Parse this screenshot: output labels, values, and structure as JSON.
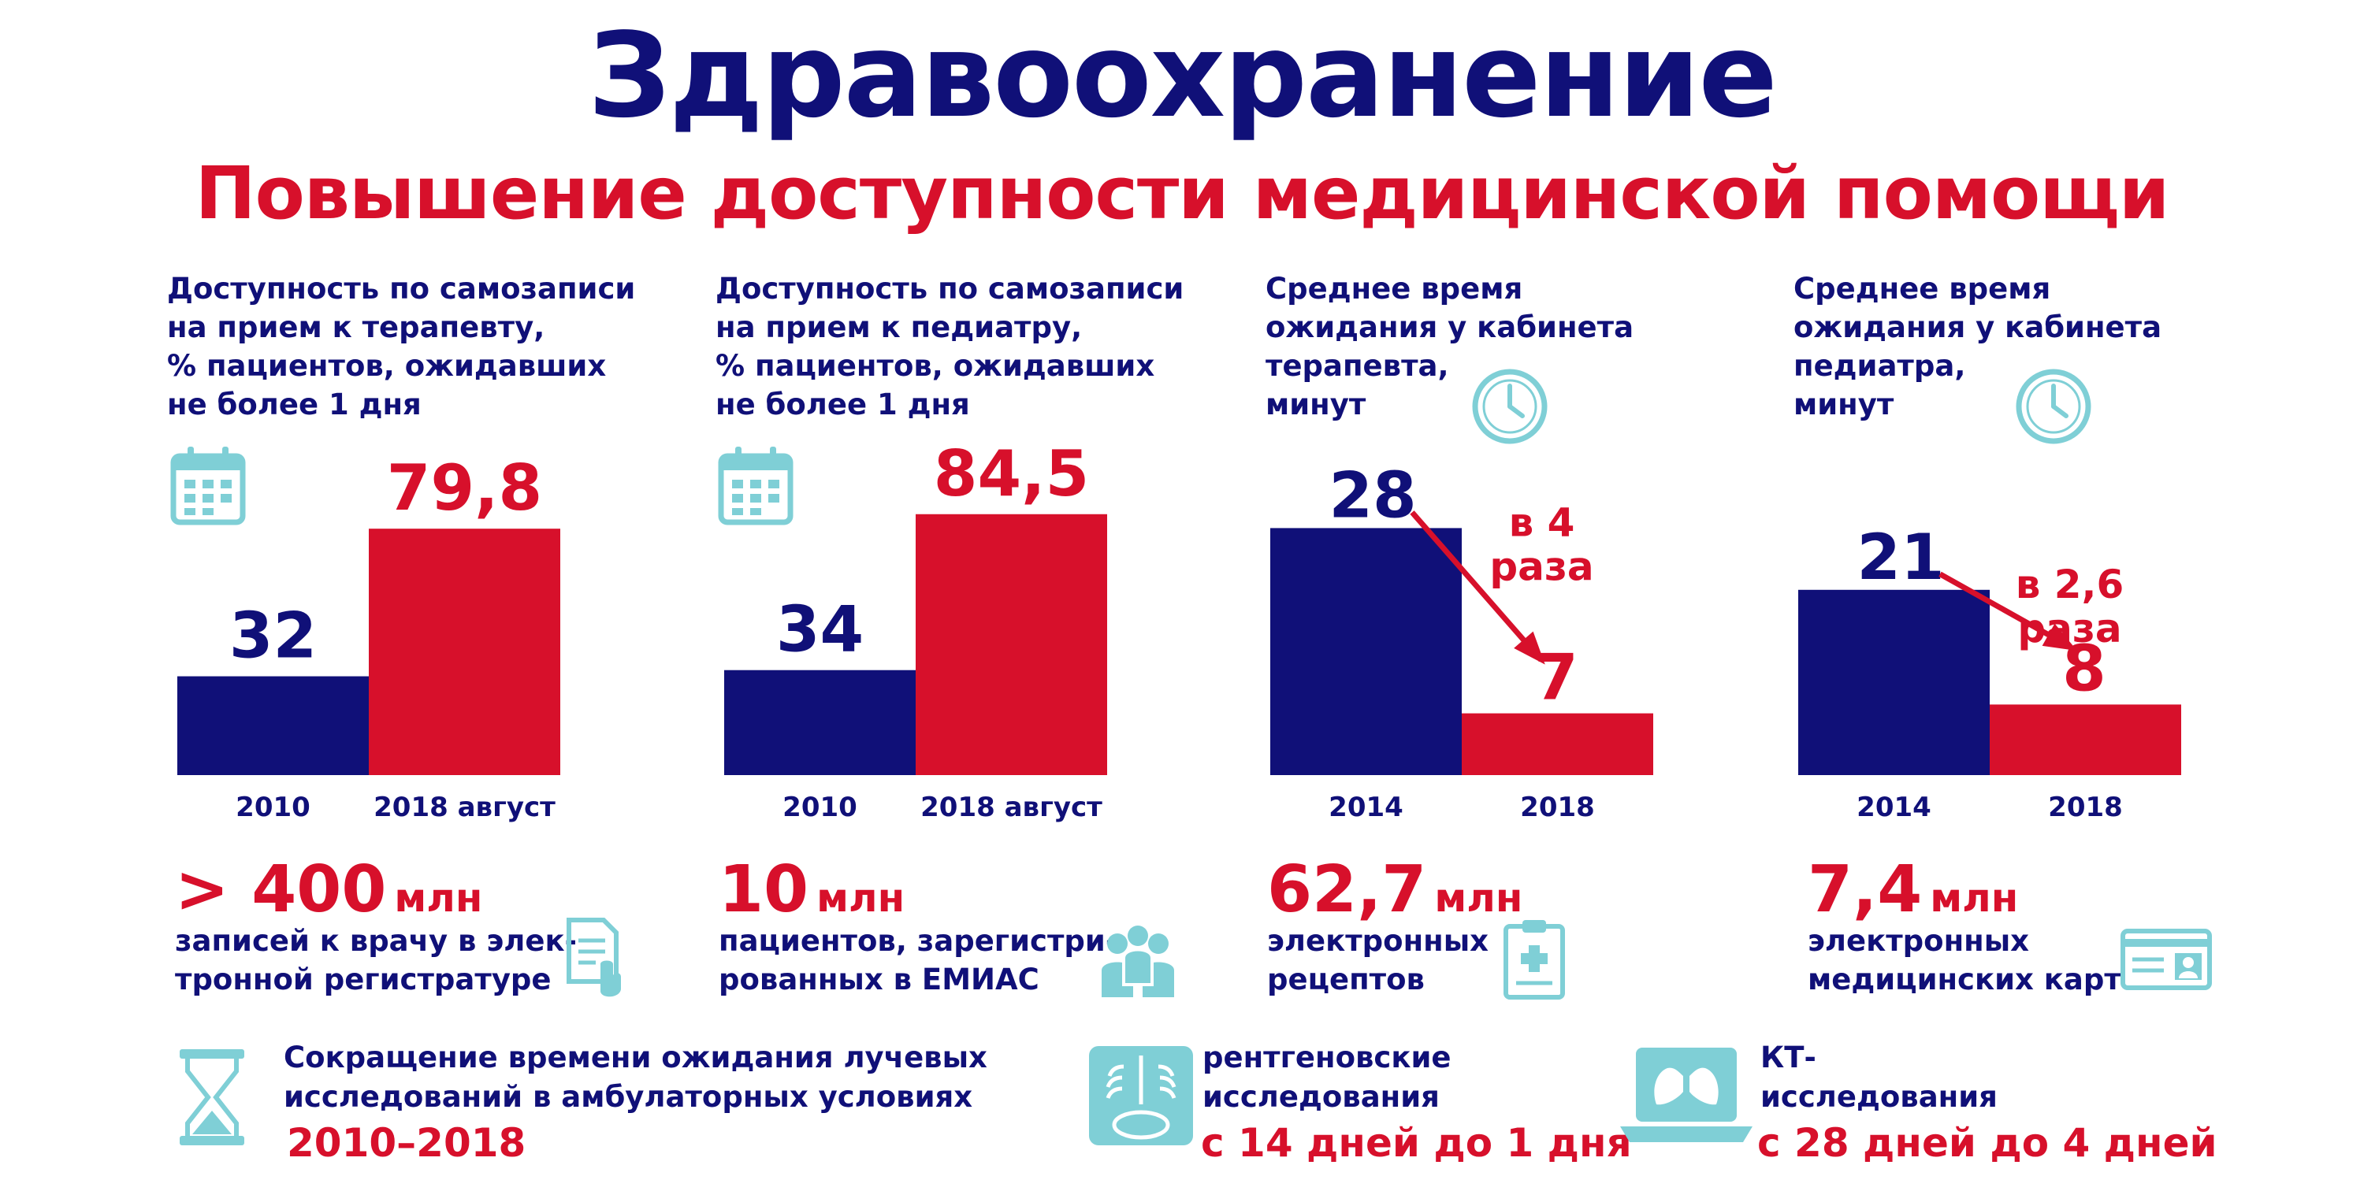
{
  "header": {
    "title": "Здравоохранение",
    "subtitle": "Повышение доступности медицинской помощи"
  },
  "colors": {
    "navy": "#101078",
    "red": "#d7102b",
    "teal": "#7fcfd6"
  },
  "panels": [
    {
      "title_lines": [
        "Доступность по самозаписи",
        "на прием к терапевту,",
        "% пациентов, ожидавших",
        "не более 1 дня"
      ],
      "icon": "calendar-icon",
      "stat": {
        "number": "> 400",
        "unit": "млн",
        "lines": [
          "записей к врачу в элек-",
          "тронной регистратуре"
        ],
        "icon": "touch-document-icon"
      }
    },
    {
      "title_lines": [
        "Доступность по самозаписи",
        "на прием к педиатру,",
        "% пациентов, ожидавших",
        "не более 1 дня"
      ],
      "icon": "calendar-icon",
      "stat": {
        "number": "10",
        "unit": "млн",
        "lines": [
          "пациентов, зарегистри-",
          "рованных в ЕМИАС"
        ],
        "icon": "family-icon"
      }
    },
    {
      "title_lines": [
        "Среднее время",
        "ожидания у кабинета",
        "терапевта,",
        "минут"
      ],
      "icon": "clock-icon",
      "stat": {
        "number": "62,7",
        "unit": "млн",
        "lines": [
          "электронных",
          "рецептов"
        ],
        "icon": "prescription-icon"
      }
    },
    {
      "title_lines": [
        "Среднее время",
        "ожидания у кабинета",
        "педиатра,",
        "минут"
      ],
      "icon": "clock-icon",
      "stat": {
        "number": "7,4",
        "unit": "млн",
        "lines": [
          "электронных",
          "медицинских карт"
        ],
        "icon": "medical-card-icon"
      }
    }
  ],
  "chart_data": [
    {
      "type": "bar",
      "title": "Доступность по самозаписи на прием к терапевту, % пациентов, ожидавших не более 1 дня",
      "categories": [
        "2010",
        "2018 август"
      ],
      "values": [
        32,
        79.8
      ],
      "labels": [
        "32",
        "79,8"
      ],
      "colors": [
        "#101078",
        "#d7102b"
      ],
      "ylim": [
        0,
        100
      ]
    },
    {
      "type": "bar",
      "title": "Доступность по самозаписи на прием к педиатру, % пациентов, ожидавших не более 1 дня",
      "categories": [
        "2010",
        "2018  август"
      ],
      "values": [
        34,
        84.5
      ],
      "labels": [
        "34",
        "84,5"
      ],
      "colors": [
        "#101078",
        "#d7102b"
      ],
      "ylim": [
        0,
        100
      ]
    },
    {
      "type": "bar",
      "title": "Среднее время ожидания у кабинета терапевта, минут",
      "categories": [
        "2014",
        "2018"
      ],
      "values": [
        28,
        7
      ],
      "labels": [
        "28",
        "7"
      ],
      "colors": [
        "#101078",
        "#d7102b"
      ],
      "annotation": [
        "в 4",
        "раза"
      ],
      "ylim": [
        0,
        35
      ]
    },
    {
      "type": "bar",
      "title": "Среднее время ожидания у кабинета педиатра, минут",
      "categories": [
        "2014",
        "2018"
      ],
      "values": [
        21,
        8
      ],
      "labels": [
        "21",
        "8"
      ],
      "colors": [
        "#101078",
        "#d7102b"
      ],
      "annotation": [
        "в 2,6",
        "раза"
      ],
      "ylim": [
        0,
        35
      ]
    }
  ],
  "bottom": {
    "reduction_lines": [
      "Сокращение времени ожидания лучевых",
      "исследований в амбулаторных условиях"
    ],
    "reduction_period": "2010–2018",
    "xray_lines": [
      "рентгеновские",
      "исследования"
    ],
    "xray_change": "с 14 дней до 1 дня",
    "ct_lines": [
      "КТ-",
      "исследования"
    ],
    "ct_change": "с 28 дней до 4 дней",
    "icons": [
      "hourglass-icon",
      "xray-icon",
      "lungs-laptop-icon"
    ]
  }
}
